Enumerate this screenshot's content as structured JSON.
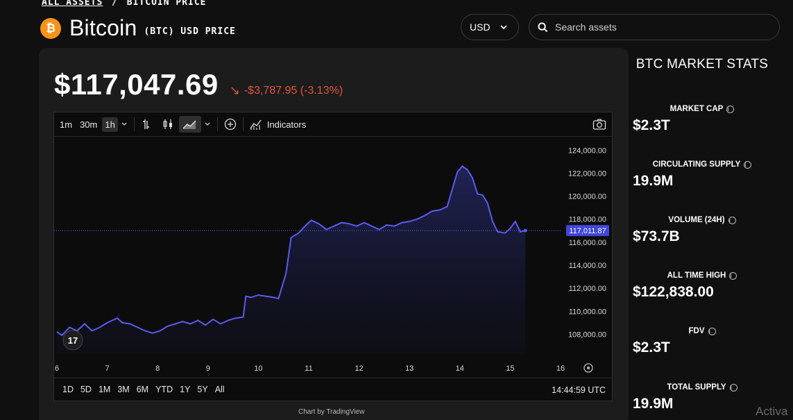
{
  "breadcrumb": {
    "root": "ALL ASSETS",
    "separator": "/",
    "current": "BITCOIN PRICE"
  },
  "asset": {
    "name": "Bitcoin",
    "subtitle": "(BTC) USD PRICE",
    "logo_icon": "bitcoin-icon",
    "logo_color": "#f7931a"
  },
  "currency": {
    "selected": "USD"
  },
  "search": {
    "placeholder": "Search assets"
  },
  "price": {
    "value": "$117,047.69",
    "change": "-$3,787.95 (-3.13%)",
    "change_color": "#e0553d"
  },
  "toolbar": {
    "intervals": [
      "1m",
      "30m",
      "1h"
    ],
    "active_interval": "1h",
    "indicators_label": "Indicators",
    "active_chart_style": "area"
  },
  "chart_data": {
    "type": "area",
    "line_color": "#5a5cf0",
    "x_ticks": [
      "6",
      "7",
      "8",
      "9",
      "10",
      "11",
      "12",
      "13",
      "14",
      "15",
      "16"
    ],
    "y_ticks": [
      "124,000.00",
      "122,000.00",
      "120,000.00",
      "118,000.00",
      "116,000.00",
      "114,000.00",
      "112,000.00",
      "110,000.00",
      "108,000.00"
    ],
    "ylim": [
      107000,
      124500
    ],
    "xlim": [
      6,
      16
    ],
    "current_price_label": "117,011.87",
    "current_price": 117011.87,
    "points": [
      [
        6.0,
        108200
      ],
      [
        6.1,
        107900
      ],
      [
        6.25,
        108600
      ],
      [
        6.4,
        108300
      ],
      [
        6.55,
        108900
      ],
      [
        6.7,
        108300
      ],
      [
        6.85,
        108600
      ],
      [
        7.0,
        109000
      ],
      [
        7.1,
        109200
      ],
      [
        7.2,
        109400
      ],
      [
        7.3,
        109000
      ],
      [
        7.45,
        108900
      ],
      [
        7.6,
        108600
      ],
      [
        7.75,
        108300
      ],
      [
        7.9,
        108100
      ],
      [
        8.05,
        108300
      ],
      [
        8.2,
        108700
      ],
      [
        8.35,
        108900
      ],
      [
        8.5,
        109100
      ],
      [
        8.65,
        108900
      ],
      [
        8.8,
        109200
      ],
      [
        8.95,
        108800
      ],
      [
        9.1,
        109300
      ],
      [
        9.25,
        108900
      ],
      [
        9.4,
        109200
      ],
      [
        9.55,
        109400
      ],
      [
        9.7,
        109500
      ],
      [
        9.75,
        111300
      ],
      [
        9.85,
        111200
      ],
      [
        10.0,
        111400
      ],
      [
        10.15,
        111300
      ],
      [
        10.3,
        111200
      ],
      [
        10.4,
        111100
      ],
      [
        10.55,
        113300
      ],
      [
        10.65,
        116400
      ],
      [
        10.8,
        116800
      ],
      [
        10.95,
        117500
      ],
      [
        11.05,
        117900
      ],
      [
        11.2,
        117600
      ],
      [
        11.35,
        117100
      ],
      [
        11.5,
        117400
      ],
      [
        11.65,
        117700
      ],
      [
        11.8,
        117600
      ],
      [
        11.95,
        117400
      ],
      [
        12.1,
        117700
      ],
      [
        12.25,
        117400
      ],
      [
        12.4,
        117100
      ],
      [
        12.55,
        117500
      ],
      [
        12.7,
        117400
      ],
      [
        12.85,
        117700
      ],
      [
        13.0,
        117800
      ],
      [
        13.15,
        118000
      ],
      [
        13.3,
        118300
      ],
      [
        13.45,
        118700
      ],
      [
        13.6,
        118800
      ],
      [
        13.75,
        119100
      ],
      [
        13.85,
        120600
      ],
      [
        13.95,
        122100
      ],
      [
        14.05,
        122600
      ],
      [
        14.15,
        122300
      ],
      [
        14.25,
        121600
      ],
      [
        14.35,
        120200
      ],
      [
        14.45,
        120100
      ],
      [
        14.55,
        119400
      ],
      [
        14.65,
        117800
      ],
      [
        14.75,
        116900
      ],
      [
        14.9,
        116800
      ],
      [
        15.0,
        117200
      ],
      [
        15.1,
        117800
      ],
      [
        15.2,
        116900
      ],
      [
        15.3,
        117011.87
      ]
    ]
  },
  "chart_footer": {
    "ranges": [
      "1D",
      "5D",
      "1M",
      "3M",
      "6M",
      "YTD",
      "1Y",
      "5Y",
      "All"
    ],
    "time": "14:44:59 UTC",
    "credit": "Chart by TradingView"
  },
  "stats": {
    "title": "BTC MARKET STATS",
    "items": [
      {
        "label": "MARKET CAP",
        "value": "$2.3T"
      },
      {
        "label": "CIRCULATING SUPPLY",
        "value": "19.9M"
      },
      {
        "label": "VOLUME (24H)",
        "value": "$73.7B"
      },
      {
        "label": "ALL TIME HIGH",
        "value": "$122,838.00"
      },
      {
        "label": "FDV",
        "value": "$2.3T"
      },
      {
        "label": "TOTAL SUPPLY",
        "value": "19.9M"
      }
    ]
  },
  "watermark": "Activa"
}
